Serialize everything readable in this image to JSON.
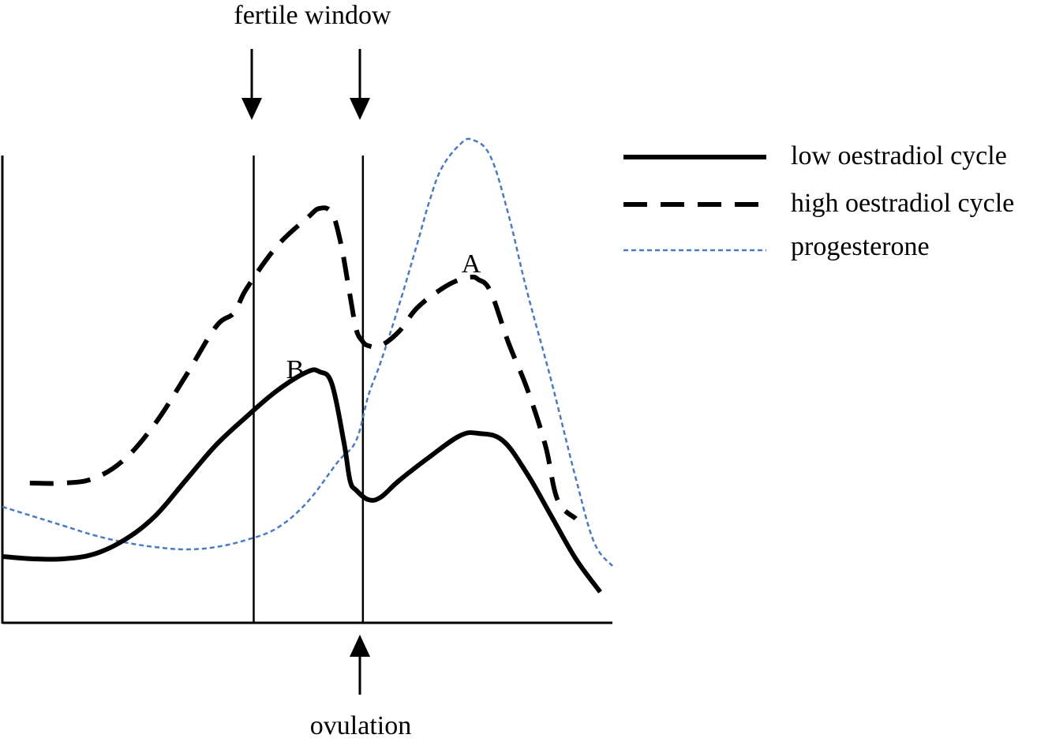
{
  "chart_data": {
    "type": "line",
    "title": "",
    "xlabel": "",
    "ylabel": "",
    "xlim": [
      0,
      100
    ],
    "ylim": [
      0,
      100
    ],
    "grid": false,
    "legend_position": "top-right",
    "colors": {
      "low": "#000000",
      "high": "#000000",
      "progesterone": "#4a7bc0",
      "axes": "#000000"
    },
    "series": [
      {
        "name": "low oestradiol cycle",
        "style": "solid",
        "x": [
          0,
          5,
          10,
          15,
          20,
          25,
          30,
          35,
          40,
          45,
          50,
          52,
          54,
          56,
          57,
          58,
          60,
          62,
          65,
          70,
          75,
          78,
          82,
          86,
          90,
          94,
          98
        ],
        "y": [
          14,
          13.5,
          13.5,
          14.5,
          17.5,
          22.5,
          30,
          37.5,
          43.5,
          49,
          53,
          53,
          50.5,
          38,
          30,
          28,
          26,
          26.5,
          30,
          35,
          39.5,
          40,
          38.5,
          31.5,
          22.5,
          13.5,
          6.5
        ]
      },
      {
        "name": "high oestradiol cycle",
        "style": "dashed",
        "x": [
          4.5,
          10,
          15,
          20,
          25,
          30,
          35,
          38,
          40,
          45,
          50,
          52,
          54,
          55.5,
          57,
          58,
          59,
          60,
          62,
          65,
          68,
          72,
          75,
          77,
          78,
          80,
          83,
          86,
          89,
          91,
          94
        ],
        "y": [
          29.5,
          29.5,
          30.5,
          34.5,
          42,
          52,
          62.5,
          65.5,
          70.5,
          79.5,
          85.5,
          87.5,
          86.5,
          80,
          69,
          62,
          59.5,
          58.5,
          58.5,
          61.5,
          66.5,
          70.5,
          72.5,
          73,
          72.5,
          70,
          59,
          49.5,
          37.5,
          26,
          22
        ]
      },
      {
        "name": "progesterone",
        "style": "dotted",
        "x": [
          0,
          5,
          10,
          15,
          20,
          25,
          30,
          35,
          40,
          45,
          50,
          55,
          58,
          60,
          62,
          65,
          68,
          70,
          72,
          75,
          77,
          80,
          83,
          86,
          90,
          94,
          97,
          100
        ],
        "y": [
          24.5,
          22.5,
          20.5,
          18.5,
          17,
          16,
          15.5,
          16,
          17.5,
          20,
          25.5,
          34,
          38.5,
          48,
          55,
          67,
          80,
          89,
          96,
          101,
          102,
          98.5,
          86,
          70,
          51,
          30.5,
          17,
          12
        ]
      }
    ],
    "annotations": [
      {
        "text": "A",
        "x": 77.5,
        "y": 76.5
      },
      {
        "text": "B",
        "x": 48.5,
        "y": 54
      }
    ],
    "vlines": [
      {
        "x": 41.2,
        "label": "fertile window",
        "arrow": "down"
      },
      {
        "x": 59.1,
        "label": "ovulation",
        "arrow": "up"
      }
    ]
  },
  "labels": {
    "fertile_window": "fertile window",
    "ovulation": "ovulation",
    "legend_low": "low oestradiol cycle",
    "legend_high": "high oestradiol cycle",
    "legend_progesterone": "progesterone",
    "annot_a": "A",
    "annot_b": "B"
  }
}
